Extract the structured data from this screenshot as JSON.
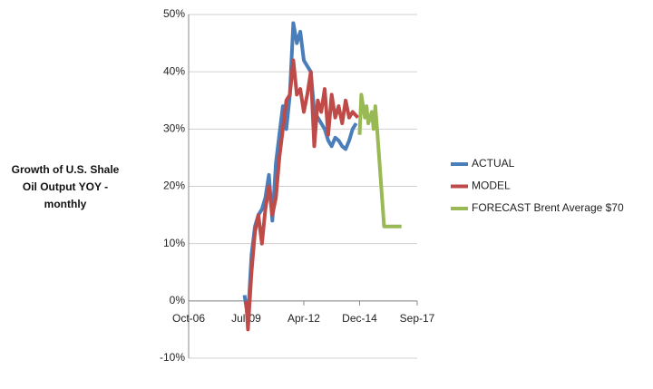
{
  "chart_data": {
    "type": "line",
    "y_axis_label": "Growth of U.S. Shale Oil Output YOY - monthly",
    "xlim": [
      "Oct-06",
      "Sep-17"
    ],
    "xticks": [
      "Oct-06",
      "Jul-09",
      "Apr-12",
      "Dec-14",
      "Sep-17"
    ],
    "ylim": [
      -10,
      50
    ],
    "yticks": [
      {
        "value": -10,
        "label": "-10%"
      },
      {
        "value": 0,
        "label": "0%"
      },
      {
        "value": 10,
        "label": "10%"
      },
      {
        "value": 20,
        "label": "20%"
      },
      {
        "value": 30,
        "label": "30%"
      },
      {
        "value": 40,
        "label": "40%"
      },
      {
        "value": 50,
        "label": "50%"
      }
    ],
    "grid": true,
    "legend": "right",
    "series": [
      {
        "name": "ACTUAL",
        "color": "#4a7ebb",
        "x": [
          "Jun-09",
          "Aug-09",
          "Oct-09",
          "Dec-09",
          "Feb-10",
          "Apr-10",
          "Jun-10",
          "Aug-10",
          "Oct-10",
          "Dec-10",
          "Feb-11",
          "Apr-11",
          "Jun-11",
          "Aug-11",
          "Oct-11",
          "Dec-11",
          "Feb-12",
          "Apr-12",
          "Jun-12",
          "Aug-12",
          "Oct-12",
          "Dec-12",
          "Feb-13",
          "Apr-13",
          "Jun-13",
          "Aug-13",
          "Oct-13",
          "Dec-13",
          "Feb-14",
          "Apr-14",
          "Jun-14",
          "Aug-14",
          "Oct-14"
        ],
        "values": [
          1,
          -3,
          8,
          13,
          15,
          16,
          18,
          22,
          14,
          24,
          29,
          34,
          30,
          36,
          48.5,
          45,
          47,
          42,
          41,
          40,
          33,
          32,
          31,
          30,
          28,
          27,
          28.5,
          28,
          27,
          26.5,
          28,
          30,
          31
        ]
      },
      {
        "name": "MODEL",
        "color": "#be4b48",
        "x": [
          "Jul-09",
          "Aug-09",
          "Oct-09",
          "Dec-09",
          "Feb-10",
          "Apr-10",
          "Jun-10",
          "Aug-10",
          "Oct-10",
          "Dec-10",
          "Feb-11",
          "Apr-11",
          "Jun-11",
          "Aug-11",
          "Oct-11",
          "Dec-11",
          "Feb-12",
          "Apr-12",
          "Jun-12",
          "Aug-12",
          "Oct-12",
          "Dec-12",
          "Feb-13",
          "Apr-13",
          "Jun-13",
          "Aug-13",
          "Oct-13",
          "Dec-13",
          "Feb-14",
          "Apr-14",
          "Jun-14",
          "Aug-14",
          "Nov-14"
        ],
        "values": [
          0,
          -5,
          5,
          12,
          15,
          10,
          16,
          20,
          15,
          18,
          25,
          30,
          35,
          36,
          42,
          36,
          37,
          33,
          36,
          40,
          27,
          35,
          33,
          37,
          29,
          36,
          32,
          34,
          31,
          35,
          32,
          33,
          32
        ]
      },
      {
        "name": "FORECAST Brent Average $70",
        "color": "#98b954",
        "x": [
          "Dec-14",
          "Jan-15",
          "Mar-15",
          "Apr-15",
          "May-15",
          "Jul-15",
          "Aug-15",
          "Sep-15",
          "Oct-15",
          "Feb-16",
          "Apr-16",
          "Dec-16"
        ],
        "values": [
          29,
          36,
          32,
          34,
          31,
          33,
          30,
          34,
          30,
          13,
          13,
          13
        ]
      }
    ]
  }
}
